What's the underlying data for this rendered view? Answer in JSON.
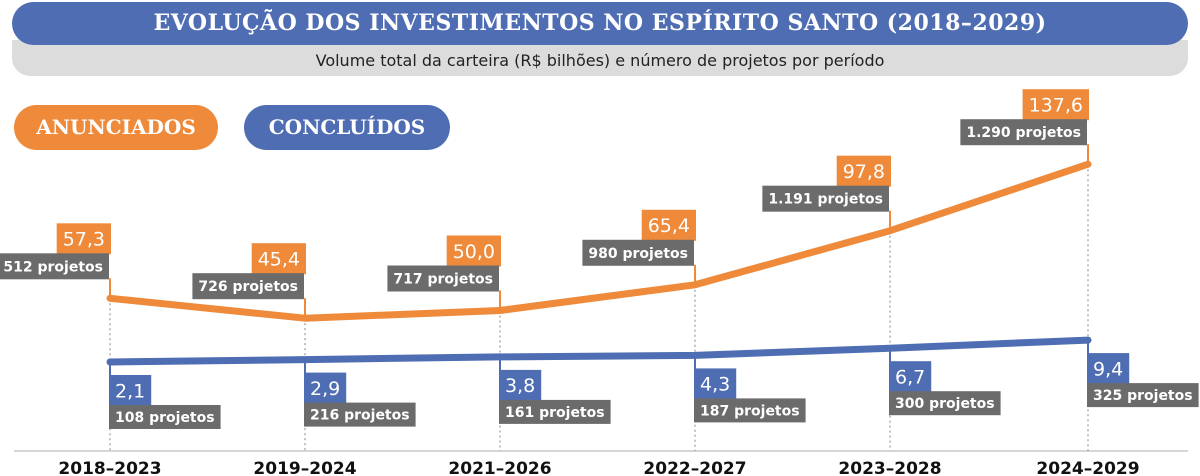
{
  "header": {
    "title": "EVOLUÇÃO DOS INVESTIMENTOS NO ESPÍRITO SANTO (2018–2029)",
    "subtitle": "Volume total da carteira (R$ bilhões) e número de projetos por período"
  },
  "chart_data": {
    "type": "line",
    "title": "EVOLUÇÃO DOS INVESTIMENTOS NO ESPÍRITO SANTO (2018–2029)",
    "subtitle": "Volume total da carteira (R$ bilhões) e número de projetos por período",
    "categories": [
      "2018–2023",
      "2019–2024",
      "2021–2026",
      "2022–2027",
      "2023–2028",
      "2024–2029"
    ],
    "legend_placement": "top-left",
    "grid": false,
    "series": [
      {
        "name": "ANUNCIADOS",
        "color": "#ee8a3a",
        "values": [
          57.3,
          45.4,
          50.0,
          65.4,
          97.8,
          137.6
        ],
        "value_labels": [
          "57,3",
          "45,4",
          "50,0",
          "65,4",
          "97,8",
          "137,6"
        ],
        "project_labels": [
          "512 projetos",
          "726 projetos",
          "717 projetos",
          "980 projetos",
          "1.191 projetos",
          "1.290 projetos"
        ]
      },
      {
        "name": "CONCLUÍDOS",
        "color": "#4f6db3",
        "values": [
          2.1,
          2.9,
          3.8,
          4.3,
          6.7,
          9.4
        ],
        "value_labels": [
          "2,1",
          "2,9",
          "3,8",
          "4,3",
          "6,7",
          "9,4"
        ],
        "project_labels": [
          "108 projetos",
          "216 projetos",
          "161 projetos",
          "187 projetos",
          "300 projetos",
          "325 projetos"
        ]
      }
    ],
    "label_box_color": "#6b6b6b"
  }
}
